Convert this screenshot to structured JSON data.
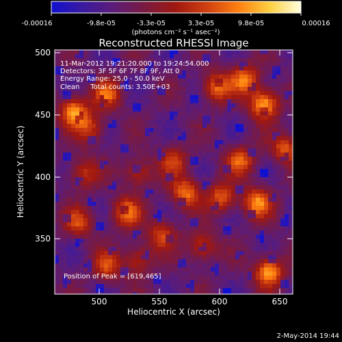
{
  "colorbar": {
    "tick_labels": [
      "-0.00016",
      "-9.8e-05",
      "-3.3e-05",
      "3.3e-05",
      "9.8e-05",
      "0.00016"
    ],
    "units_label": "(photons cm⁻² s⁻¹ asec⁻²)",
    "colormap": [
      "#1010d0",
      "#3a1aa0",
      "#5c1c78",
      "#7a1a40",
      "#a01810",
      "#d04010",
      "#ff8010",
      "#ffd040",
      "#ffffe0"
    ]
  },
  "plot": {
    "title": "Reconstructed RHESSI Image",
    "xlabel": "Heliocentric X (arcsec)",
    "ylabel": "Heliocentric Y (arcsec)",
    "xlim": [
      465,
      655
    ],
    "ylim": [
      305,
      502
    ],
    "x_ticks": [
      "500",
      "550",
      "600",
      "650"
    ],
    "y_ticks": [
      "350",
      "400",
      "450",
      "500"
    ],
    "info_lines": [
      "11-Mar-2012 19:21:20.000 to 19:24:54.000",
      "Detectors: 3F 5F 6F 7F 8F 9F, Att 0",
      "Energy Range: 25.0 - 50.0 keV",
      "Clean     Total counts: 3.50E+03"
    ],
    "peak_text": "Position of Peak = [619,465]"
  },
  "footer": {
    "timestamp": "2-May-2014 19:44"
  },
  "chart_data": {
    "type": "heatmap",
    "title": "Reconstructed RHESSI Image",
    "xlabel": "Heliocentric X (arcsec)",
    "ylabel": "Heliocentric Y (arcsec)",
    "xlim": [
      465,
      655
    ],
    "ylim": [
      305,
      502
    ],
    "colorbar_range": [
      -0.00016,
      0.00016
    ],
    "peak_position": [
      619,
      465
    ]
  }
}
